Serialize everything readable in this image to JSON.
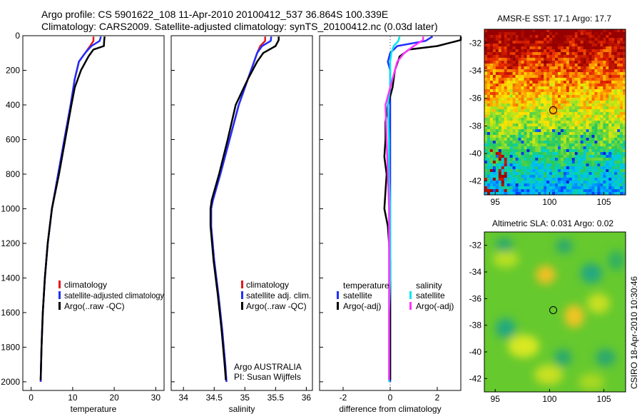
{
  "header": {
    "line1": "Argo profile: CS 5901622_108 11-Apr-2010 20100412_537 36.864S 100.339E",
    "line2": "Climatology: CARS2009. Satellite-adjusted climatology: synTS_20100412.nc (0.03d later)"
  },
  "colors": {
    "climatology": "#e41a1c",
    "satellite": "#1f2fff",
    "argo": "#000000",
    "sal_satellite": "#00e5f0",
    "sal_argo": "#ff33ff"
  },
  "credit": "CSIRO 18-Apr-2010 10:30:46",
  "chart_data": [
    {
      "type": "line",
      "xlabel": "temperature",
      "xlim": [
        -2,
        32
      ],
      "xticks": [
        0,
        10,
        20,
        30
      ],
      "ylim": [
        2050,
        0
      ],
      "yticks": [
        0,
        200,
        400,
        600,
        800,
        1000,
        1200,
        1400,
        1600,
        1800,
        2000
      ],
      "legend": [
        "climatology",
        "satellite-adjusted climatology",
        "Argo(..raw -QC)"
      ],
      "series": [
        {
          "name": "climatology",
          "color": "#e41a1c",
          "depth": [
            5,
            30,
            60,
            100,
            150,
            250,
            400,
            600,
            800,
            1000,
            1200,
            1400,
            1600,
            1800,
            2000
          ],
          "values": [
            15.0,
            15.0,
            14.2,
            13.0,
            11.5,
            10.5,
            9.5,
            8.0,
            6.5,
            5.0,
            4.0,
            3.3,
            2.8,
            2.5,
            2.3
          ]
        },
        {
          "name": "satellite-adjusted climatology",
          "color": "#1f2fff",
          "depth": [
            5,
            30,
            60,
            100,
            150,
            250,
            400,
            600,
            800,
            1000,
            1200,
            1400,
            1600,
            1800,
            2000
          ],
          "values": [
            16.8,
            16.5,
            14.5,
            13.0,
            11.5,
            10.5,
            9.5,
            8.0,
            6.5,
            5.0,
            4.0,
            3.3,
            2.8,
            2.5,
            2.3
          ]
        },
        {
          "name": "Argo(..raw -QC)",
          "color": "#000000",
          "depth": [
            5,
            25,
            60,
            80,
            120,
            200,
            300,
            400,
            600,
            800,
            1000,
            1200,
            1400,
            1600,
            1800,
            1990
          ],
          "values": [
            17.7,
            17.6,
            17.5,
            15.0,
            13.8,
            12.0,
            10.5,
            9.7,
            8.2,
            6.7,
            5.0,
            4.0,
            3.3,
            2.8,
            2.5,
            2.3
          ]
        }
      ]
    },
    {
      "type": "line",
      "xlabel": "salinity",
      "xlim": [
        33.8,
        36.1
      ],
      "xticks": [
        34,
        34.5,
        35,
        35.5,
        36
      ],
      "ylim": [
        2050,
        0
      ],
      "legend": [
        "climatology",
        "satellite adj. clim.",
        "Argo(..raw -QC)"
      ],
      "annotation": [
        "Argo AUSTRALIA",
        "PI: Susan Wijffels"
      ],
      "series": [
        {
          "name": "climatology",
          "color": "#e41a1c",
          "depth": [
            5,
            30,
            60,
            100,
            150,
            250,
            400,
            600,
            800,
            950,
            1000,
            1100,
            1300,
            1500,
            1700,
            1900,
            2000
          ],
          "values": [
            35.33,
            35.33,
            35.25,
            35.2,
            35.15,
            35.05,
            34.9,
            34.75,
            34.6,
            34.48,
            34.45,
            34.45,
            34.5,
            34.57,
            34.63,
            34.68,
            34.7
          ]
        },
        {
          "name": "satellite adj. clim.",
          "color": "#1f2fff",
          "depth": [
            5,
            30,
            60,
            100,
            150,
            250,
            400,
            600,
            800,
            950,
            1000,
            1100,
            1300,
            1500,
            1700,
            1900,
            2000
          ],
          "values": [
            35.43,
            35.42,
            35.28,
            35.2,
            35.15,
            35.05,
            34.9,
            34.75,
            34.6,
            34.48,
            34.45,
            34.45,
            34.5,
            34.57,
            34.63,
            34.68,
            34.7
          ]
        },
        {
          "name": "Argo(..raw -QC)",
          "color": "#000000",
          "depth": [
            5,
            25,
            60,
            100,
            150,
            250,
            400,
            600,
            800,
            950,
            1000,
            1100,
            1300,
            1500,
            1700,
            1900,
            1990
          ],
          "values": [
            35.55,
            35.55,
            35.5,
            35.3,
            35.2,
            35.05,
            34.85,
            34.72,
            34.58,
            34.46,
            34.44,
            34.44,
            34.49,
            34.56,
            34.62,
            34.67,
            34.69
          ]
        }
      ]
    },
    {
      "type": "line",
      "xlabel": "difference from climatology",
      "xlim": [
        -3,
        3
      ],
      "xticks": [
        -2,
        0,
        2
      ],
      "ylim": [
        2050,
        0
      ],
      "legend_temperature": {
        "title": "temperature",
        "items": [
          "satellite",
          "Argo(-adj)"
        ]
      },
      "legend_salinity": {
        "title": "salinity",
        "items": [
          "satellite",
          "Argo(-adj)"
        ]
      },
      "series": [
        {
          "name": "temperature satellite",
          "color": "#1f2fff",
          "depth": [
            5,
            30,
            60,
            100,
            150,
            200,
            300,
            400,
            2000
          ],
          "values": [
            1.8,
            1.5,
            0.3,
            0.0,
            -0.1,
            0.0,
            0.0,
            0.0,
            0.0
          ]
        },
        {
          "name": "temperature Argo(-adj)",
          "color": "#000000",
          "depth": [
            5,
            25,
            60,
            80,
            120,
            200,
            300,
            400,
            500,
            600,
            700,
            800,
            900,
            1000,
            1100,
            1200,
            1300,
            1400,
            1600,
            1800,
            1990
          ],
          "values": [
            3.0,
            3.0,
            2.0,
            0.8,
            0.4,
            0.2,
            0.1,
            -0.1,
            -0.2,
            -0.2,
            -0.25,
            -0.15,
            -0.2,
            -0.25,
            -0.1,
            -0.05,
            0.0,
            0.0,
            0.0,
            0.0,
            0.0
          ]
        },
        {
          "name": "salinity satellite",
          "color": "#00e5f0",
          "depth": [
            5,
            30,
            60,
            100,
            150,
            200,
            300,
            400,
            600,
            800,
            1000,
            1200,
            1400,
            1600,
            1800,
            2000
          ],
          "values": [
            0.4,
            0.35,
            0.15,
            0.05,
            0.0,
            0.0,
            0.0,
            -0.1,
            -0.05,
            -0.05,
            0.0,
            0.0,
            0.0,
            -0.05,
            -0.05,
            -0.05
          ]
        },
        {
          "name": "salinity Argo(-adj)",
          "color": "#ff33ff",
          "depth": [
            5,
            25,
            60,
            100,
            150,
            250,
            400,
            600,
            800,
            1000,
            1200,
            1400,
            1600,
            1800,
            1990
          ],
          "values": [
            1.4,
            1.4,
            1.0,
            0.6,
            0.3,
            0.1,
            -0.2,
            -0.15,
            -0.1,
            -0.05,
            -0.05,
            -0.05,
            -0.05,
            -0.05,
            -0.05
          ]
        }
      ]
    },
    {
      "type": "heatmap",
      "title": "AMSR-E SST: 17.1 Argo: 17.7",
      "xticks": [
        95,
        100,
        105
      ],
      "yticks": [
        -32,
        -34,
        -36,
        -38,
        -40,
        -42
      ],
      "xlim": [
        94,
        107
      ],
      "ylim": [
        -43,
        -31
      ],
      "marker": {
        "x": 100.339,
        "y": -36.864
      }
    },
    {
      "type": "heatmap",
      "title": "Altimetric SLA: 0.031 Argo: 0.02",
      "xticks": [
        95,
        100,
        105
      ],
      "yticks": [
        -32,
        -34,
        -36,
        -38,
        -40,
        -42
      ],
      "xlim": [
        94,
        107
      ],
      "ylim": [
        -43,
        -31
      ],
      "marker": {
        "x": 100.339,
        "y": -36.864
      }
    }
  ]
}
